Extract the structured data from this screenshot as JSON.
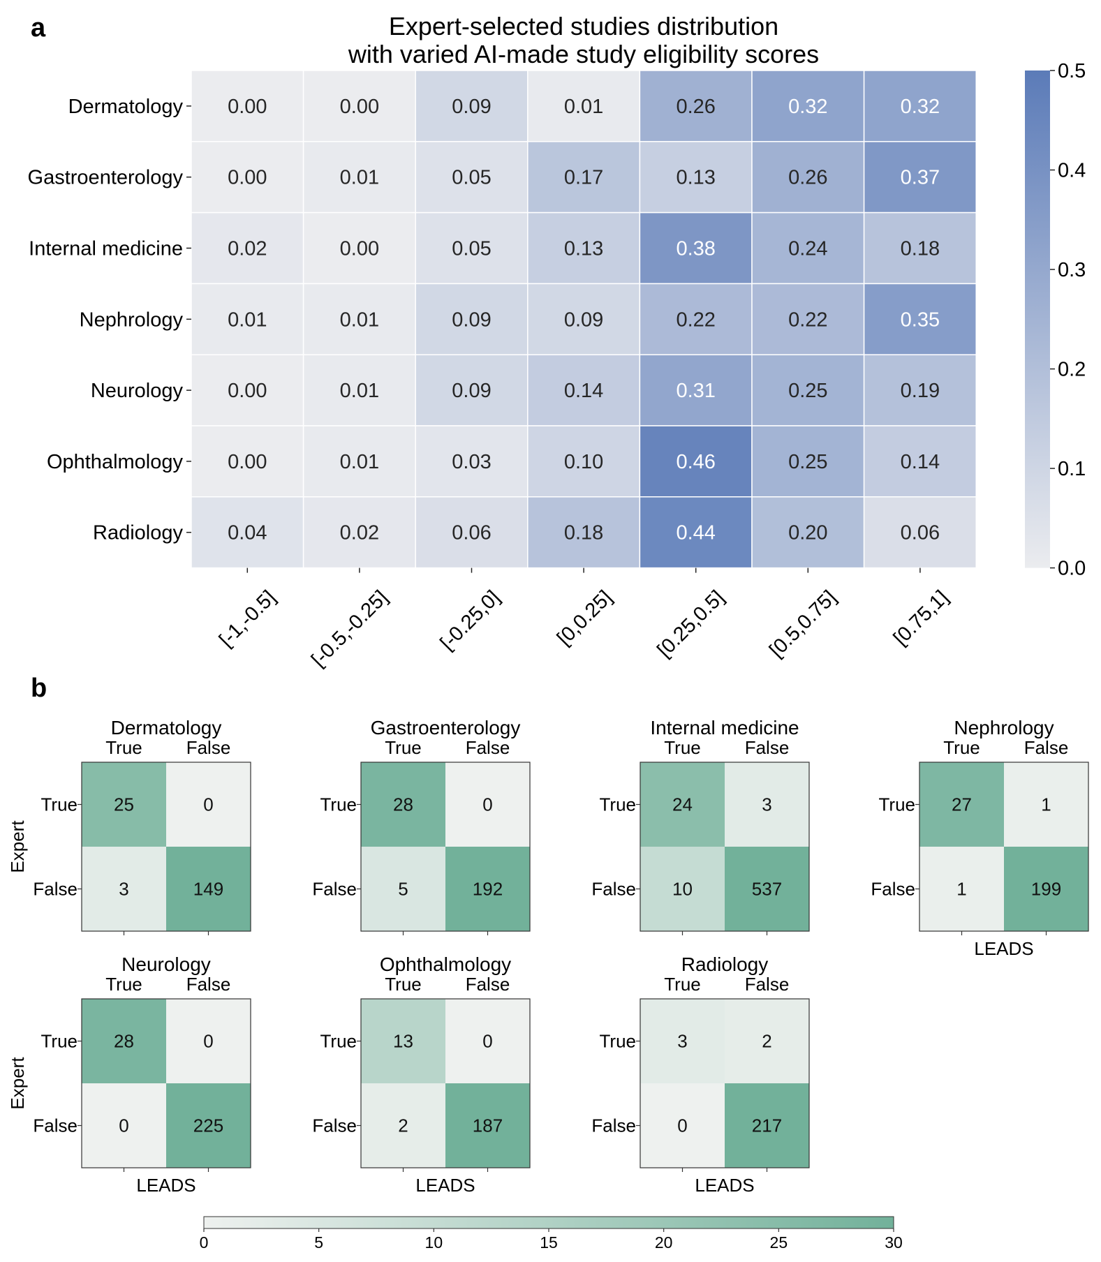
{
  "panel_a": {
    "label": "a"
  },
  "panel_b": {
    "label": "b"
  },
  "chart_data": [
    {
      "type": "heatmap",
      "title": "Expert-selected studies distribution with varied AI-made study eligibility scores",
      "title_lines": [
        "Expert-selected studies distribution",
        "with varied AI-made study eligibility scores"
      ],
      "rows": [
        "Dermatology",
        "Gastroenterology",
        "Internal medicine",
        "Nephrology",
        "Neurology",
        "Ophthalmology",
        "Radiology"
      ],
      "columns": [
        "[-1,-0.5]",
        "[-0.5,-0.25]",
        "[-0.25,0]",
        "[0,0.25]",
        "[0.25,0.5]",
        "[0.5,0.75]",
        "[0.75,1]"
      ],
      "values": [
        [
          0.0,
          0.0,
          0.09,
          0.01,
          0.26,
          0.32,
          0.32
        ],
        [
          0.0,
          0.01,
          0.05,
          0.17,
          0.13,
          0.26,
          0.37
        ],
        [
          0.02,
          0.0,
          0.05,
          0.13,
          0.38,
          0.24,
          0.18
        ],
        [
          0.01,
          0.01,
          0.09,
          0.09,
          0.22,
          0.22,
          0.35
        ],
        [
          0.0,
          0.01,
          0.09,
          0.14,
          0.31,
          0.25,
          0.19
        ],
        [
          0.0,
          0.01,
          0.03,
          0.1,
          0.46,
          0.25,
          0.14
        ],
        [
          0.04,
          0.02,
          0.06,
          0.18,
          0.44,
          0.2,
          0.06
        ]
      ],
      "colorbar": {
        "range": [
          0.0,
          0.5
        ],
        "ticks": [
          "0.0",
          "0.1",
          "0.2",
          "0.3",
          "0.4",
          "0.5"
        ],
        "color_low": "#ebecef",
        "color_high": "#5b7bb8"
      }
    },
    {
      "type": "heatmap",
      "subtype": "confusion_matrices",
      "xlabel": "LEADS",
      "ylabel": "Expert",
      "tick_labels": [
        "True",
        "False"
      ],
      "matrices": [
        {
          "name": "Dermatology",
          "values": [
            [
              25,
              0
            ],
            [
              3,
              149
            ]
          ]
        },
        {
          "name": "Gastroenterology",
          "values": [
            [
              28,
              0
            ],
            [
              5,
              192
            ]
          ]
        },
        {
          "name": "Internal medicine",
          "values": [
            [
              24,
              3
            ],
            [
              10,
              537
            ]
          ]
        },
        {
          "name": "Nephrology",
          "values": [
            [
              27,
              1
            ],
            [
              1,
              199
            ]
          ]
        },
        {
          "name": "Neurology",
          "values": [
            [
              28,
              0
            ],
            [
              0,
              225
            ]
          ]
        },
        {
          "name": "Ophthalmology",
          "values": [
            [
              13,
              0
            ],
            [
              2,
              187
            ]
          ]
        },
        {
          "name": "Radiology",
          "values": [
            [
              3,
              2
            ],
            [
              0,
              217
            ]
          ]
        }
      ],
      "colorbar": {
        "range": [
          0,
          30
        ],
        "ticks": [
          "0",
          "5",
          "10",
          "15",
          "20",
          "25",
          "30"
        ],
        "color_low": "#eef1ef",
        "color_high": "#72b19a"
      }
    }
  ]
}
